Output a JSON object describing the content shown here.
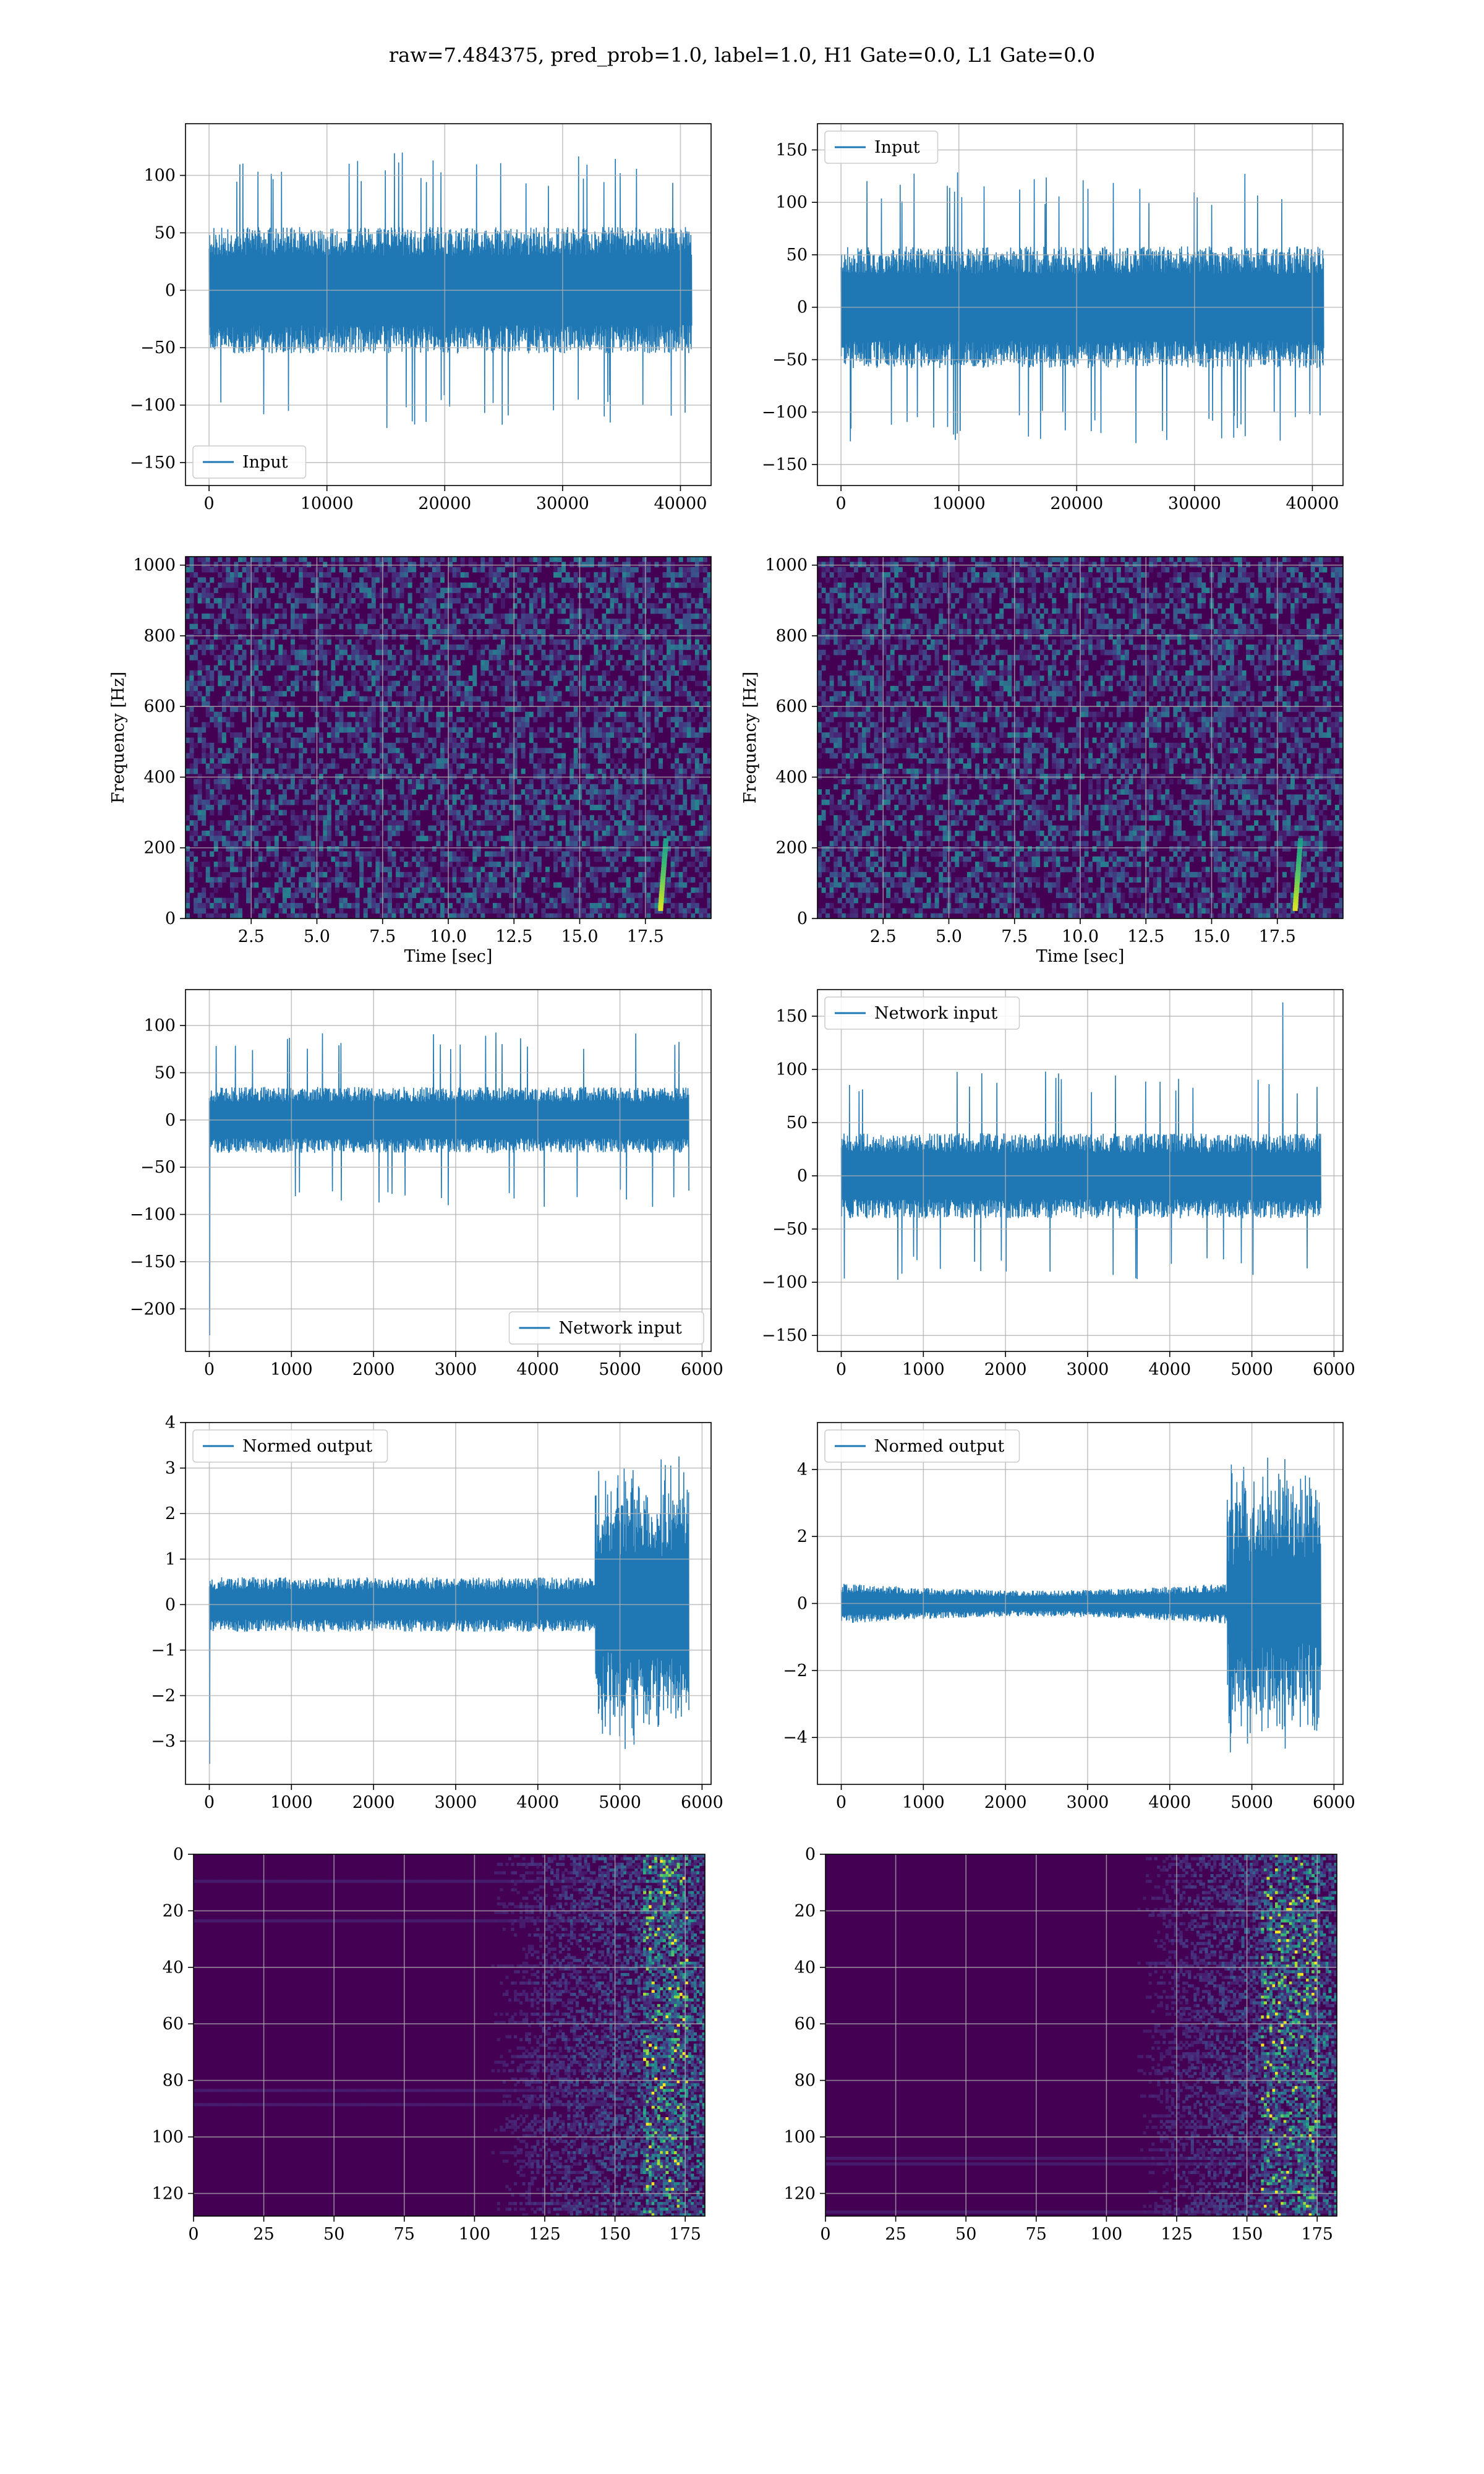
{
  "figure": {
    "suptitle": "raw=7.484375, pred_prob=1.0, label=1.0, H1 Gate=0.0, L1 Gate=0.0"
  },
  "colors": {
    "line": "#1f77b4",
    "grid": "#b0b0b0",
    "spine": "#000000",
    "viridis_low": "#440154",
    "viridis_mid": "#21918c",
    "viridis_high": "#fde725"
  },
  "chart_data": [
    {
      "id": "r1l",
      "type": "line",
      "legend": "Input",
      "legend_loc": "lower-left",
      "x_ticks": [
        0,
        10000,
        20000,
        30000,
        40000
      ],
      "x_tick_labels": [
        "0",
        "10000",
        "20000",
        "30000",
        "40000"
      ],
      "xlim": [
        -2000,
        42600
      ],
      "x_end": 40960,
      "y_ticks": [
        -150,
        -100,
        -50,
        0,
        50,
        100
      ],
      "y_tick_labels": [
        "−150",
        "−100",
        "−50",
        "0",
        "50",
        "100"
      ],
      "ylim": [
        -170,
        145
      ],
      "signal": {
        "seed": 11,
        "n": 1600,
        "core": 55,
        "spike": 120,
        "envelope": "flat"
      }
    },
    {
      "id": "r1r",
      "type": "line",
      "legend": "Input",
      "legend_loc": "upper-left",
      "x_ticks": [
        0,
        10000,
        20000,
        30000,
        40000
      ],
      "x_tick_labels": [
        "0",
        "10000",
        "20000",
        "30000",
        "40000"
      ],
      "xlim": [
        -2000,
        42600
      ],
      "x_end": 40960,
      "y_ticks": [
        -150,
        -100,
        -50,
        0,
        50,
        100,
        150
      ],
      "y_tick_labels": [
        "−150",
        "−100",
        "−50",
        "0",
        "50",
        "100",
        "150"
      ],
      "ylim": [
        -170,
        175
      ],
      "signal": {
        "seed": 23,
        "n": 1600,
        "core": 58,
        "spike": 130,
        "envelope": "flat"
      }
    },
    {
      "id": "r2l",
      "type": "heatmap",
      "colormap": "viridis",
      "legend": "",
      "xlabel": "Time [sec]",
      "ylabel": "Frequency [Hz]",
      "x_ticks": [
        2.5,
        5.0,
        7.5,
        10.0,
        12.5,
        15.0,
        17.5
      ],
      "x_tick_labels": [
        "2.5",
        "5.0",
        "7.5",
        "10.0",
        "12.5",
        "15.0",
        "17.5"
      ],
      "xlim": [
        0,
        20
      ],
      "y_ticks": [
        0,
        200,
        400,
        600,
        800,
        1000
      ],
      "y_tick_labels": [
        "0",
        "200",
        "400",
        "600",
        "800",
        "1000"
      ],
      "ylim": [
        0,
        1024
      ],
      "chirp": {
        "t": 18.2,
        "f_low": 30,
        "f_high": 220
      },
      "seed": 101
    },
    {
      "id": "r2r",
      "type": "heatmap",
      "colormap": "viridis",
      "legend": "",
      "xlabel": "Time [sec]",
      "ylabel": "Frequency [Hz]",
      "x_ticks": [
        2.5,
        5.0,
        7.5,
        10.0,
        12.5,
        15.0,
        17.5
      ],
      "x_tick_labels": [
        "2.5",
        "5.0",
        "7.5",
        "10.0",
        "12.5",
        "15.0",
        "17.5"
      ],
      "xlim": [
        0,
        20
      ],
      "y_ticks": [
        0,
        200,
        400,
        600,
        800,
        1000
      ],
      "y_tick_labels": [
        "0",
        "200",
        "400",
        "600",
        "800",
        "1000"
      ],
      "ylim": [
        0,
        1024
      ],
      "chirp": {
        "t": 18.3,
        "f_low": 30,
        "f_high": 220
      },
      "seed": 202
    },
    {
      "id": "r3l",
      "type": "line",
      "legend": "Network input",
      "legend_loc": "lower-right",
      "x_ticks": [
        0,
        1000,
        2000,
        3000,
        4000,
        5000,
        6000
      ],
      "x_tick_labels": [
        "0",
        "1000",
        "2000",
        "3000",
        "4000",
        "5000",
        "6000"
      ],
      "xlim": [
        -290,
        6110
      ],
      "x_end": 5840,
      "y_ticks": [
        -200,
        -150,
        -100,
        -50,
        0,
        50,
        100
      ],
      "y_tick_labels": [
        "−200",
        "−150",
        "−100",
        "−50",
        "0",
        "50",
        "100"
      ],
      "ylim": [
        -245,
        138
      ],
      "signal": {
        "seed": 37,
        "n": 1400,
        "core": 35,
        "spike": 95,
        "envelope": "flat",
        "start_dip": -228
      }
    },
    {
      "id": "r3r",
      "type": "line",
      "legend": "Network input",
      "legend_loc": "upper-left",
      "x_ticks": [
        0,
        1000,
        2000,
        3000,
        4000,
        5000,
        6000
      ],
      "x_tick_labels": [
        "0",
        "1000",
        "2000",
        "3000",
        "4000",
        "5000",
        "6000"
      ],
      "xlim": [
        -290,
        6110
      ],
      "x_end": 5840,
      "y_ticks": [
        -150,
        -100,
        -50,
        0,
        50,
        100,
        150
      ],
      "y_tick_labels": [
        "−150",
        "−100",
        "−50",
        "0",
        "50",
        "100",
        "150"
      ],
      "ylim": [
        -165,
        175
      ],
      "signal": {
        "seed": 41,
        "n": 1400,
        "core": 40,
        "spike": 100,
        "envelope": "flat",
        "peak": 163
      }
    },
    {
      "id": "r4l",
      "type": "line",
      "legend": "Normed output",
      "legend_loc": "upper-left",
      "x_ticks": [
        0,
        1000,
        2000,
        3000,
        4000,
        5000,
        6000
      ],
      "x_tick_labels": [
        "0",
        "1000",
        "2000",
        "3000",
        "4000",
        "5000",
        "6000"
      ],
      "xlim": [
        -290,
        6110
      ],
      "x_end": 5840,
      "y_ticks": [
        -3,
        -2,
        -1,
        0,
        1,
        2,
        3,
        4
      ],
      "y_tick_labels": [
        "−3",
        "−2",
        "−1",
        "0",
        "1",
        "2",
        "3",
        "4"
      ],
      "ylim": [
        -3.95,
        4.0
      ],
      "signal": {
        "seed": 53,
        "n": 1400,
        "core": 0.6,
        "spike": 1.4,
        "envelope": "burst",
        "burst_start": 4700,
        "burst_amp": 3.4,
        "start_dip": -3.5
      }
    },
    {
      "id": "r4r",
      "type": "line",
      "legend": "Normed output",
      "legend_loc": "upper-left",
      "x_ticks": [
        0,
        1000,
        2000,
        3000,
        4000,
        5000,
        6000
      ],
      "x_tick_labels": [
        "0",
        "1000",
        "2000",
        "3000",
        "4000",
        "5000",
        "6000"
      ],
      "xlim": [
        -290,
        6110
      ],
      "x_end": 5840,
      "y_ticks": [
        -4,
        -2,
        0,
        2,
        4
      ],
      "y_tick_labels": [
        "−4",
        "−2",
        "0",
        "2",
        "4"
      ],
      "ylim": [
        -5.4,
        5.4
      ],
      "signal": {
        "seed": 67,
        "n": 1400,
        "core": 0.6,
        "spike": 1.5,
        "envelope": "taper_burst",
        "burst_start": 4700,
        "burst_amp": 4.6
      }
    },
    {
      "id": "r5l",
      "type": "heatmap",
      "colormap": "viridis",
      "legend": "",
      "x_ticks": [
        0,
        25,
        50,
        75,
        100,
        125,
        150,
        175
      ],
      "x_tick_labels": [
        "0",
        "25",
        "50",
        "75",
        "100",
        "125",
        "150",
        "175"
      ],
      "xlim": [
        0,
        182
      ],
      "y_ticks": [
        0,
        20,
        40,
        60,
        80,
        100,
        120
      ],
      "y_tick_labels": [
        "0",
        "20",
        "40",
        "60",
        "80",
        "100",
        "120"
      ],
      "ylim": [
        128,
        0
      ],
      "y_inverted": true,
      "activation_onset": 105,
      "hot_start": 160,
      "seed": 303
    },
    {
      "id": "r5r",
      "type": "heatmap",
      "colormap": "viridis",
      "legend": "",
      "x_ticks": [
        0,
        25,
        50,
        75,
        100,
        125,
        150,
        175
      ],
      "x_tick_labels": [
        "0",
        "25",
        "50",
        "75",
        "100",
        "125",
        "150",
        "175"
      ],
      "xlim": [
        0,
        182
      ],
      "y_ticks": [
        0,
        20,
        40,
        60,
        80,
        100,
        120
      ],
      "y_tick_labels": [
        "0",
        "20",
        "40",
        "60",
        "80",
        "100",
        "120"
      ],
      "ylim": [
        128,
        0
      ],
      "y_inverted": true,
      "activation_onset": 110,
      "hot_start": 155,
      "seed": 404
    }
  ]
}
